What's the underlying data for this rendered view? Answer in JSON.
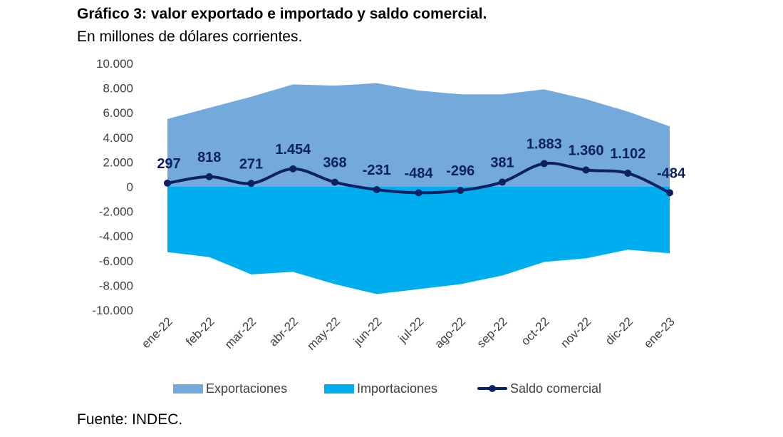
{
  "title": "Gráfico 3: valor exportado e importado y saldo comercial.",
  "subtitle": "En millones de dólares corrientes.",
  "source": "Fuente: INDEC.",
  "colors": {
    "exportaciones": "#74a9db",
    "importaciones": "#00aeef",
    "saldo": "#0b2164",
    "axis_text": "#404040"
  },
  "legend": {
    "exportaciones": "Exportaciones",
    "importaciones": "Importaciones",
    "saldo": "Saldo comercial"
  },
  "chart_data": {
    "type": "area",
    "title": "Gráfico 3: valor exportado e importado y saldo comercial.",
    "subtitle": "En millones de dólares corrientes.",
    "categories": [
      "ene-22",
      "feb-22",
      "mar-22",
      "abr-22",
      "may-22",
      "jun-22",
      "jul-22",
      "ago-22",
      "sep-22",
      "oct-22",
      "nov-22",
      "dic-22",
      "ene-23"
    ],
    "ylim": [
      -10000,
      10000
    ],
    "yticks": [
      "10.000",
      "8.000",
      "6.000",
      "4.000",
      "2.000",
      "0",
      "-2.000",
      "-4.000",
      "-6.000",
      "-8.000",
      "-10.000"
    ],
    "ytick_values": [
      10000,
      8000,
      6000,
      4000,
      2000,
      0,
      -2000,
      -4000,
      -6000,
      -8000,
      -10000
    ],
    "grid": false,
    "legend_position": "bottom",
    "series": [
      {
        "name": "Exportaciones",
        "type": "area",
        "values": [
          5500,
          6400,
          7300,
          8300,
          8200,
          8400,
          7800,
          7500,
          7500,
          7900,
          7100,
          6100,
          4900
        ]
      },
      {
        "name": "Importaciones",
        "type": "area",
        "values": [
          -5300,
          -5700,
          -7100,
          -6900,
          -7900,
          -8700,
          -8300,
          -7900,
          -7200,
          -6100,
          -5800,
          -5100,
          -5400
        ]
      },
      {
        "name": "Saldo comercial",
        "type": "line",
        "values": [
          297,
          818,
          271,
          1454,
          368,
          -231,
          -484,
          -296,
          381,
          1883,
          1360,
          1102,
          -484
        ],
        "labels": [
          "297",
          "818",
          "271",
          "1.454",
          "368",
          "-231",
          "-484",
          "-296",
          "381",
          "1.883",
          "1.360",
          "1.102",
          "-484"
        ]
      }
    ]
  }
}
